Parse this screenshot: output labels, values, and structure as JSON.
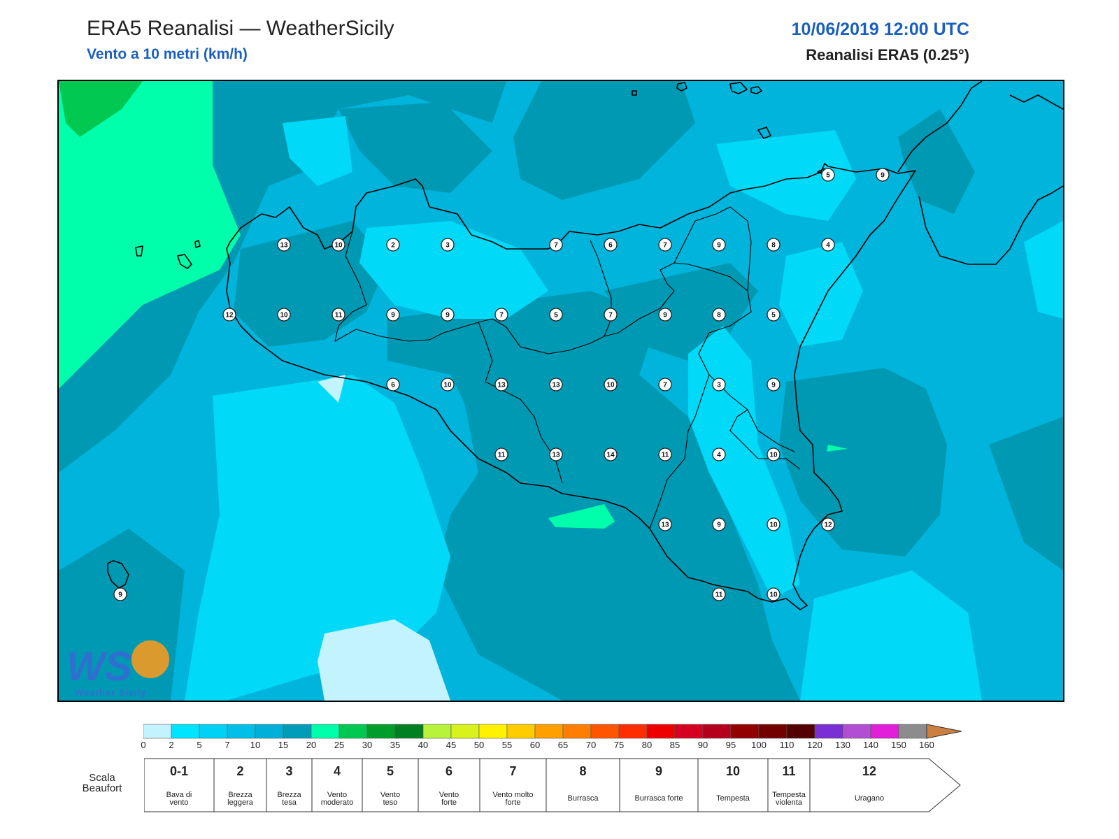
{
  "header": {
    "title": "ERA5 Reanalisi — WeatherSicily",
    "subtitle": "Vento a 10 metri (km/h)",
    "datetime": "10/06/2019 12:00 UTC",
    "source": "Reanalisi ERA5 (0.25°)"
  },
  "colorbar": {
    "ticks": [
      "0",
      "2",
      "5",
      "7",
      "10",
      "15",
      "20",
      "25",
      "30",
      "35",
      "40",
      "45",
      "50",
      "55",
      "60",
      "65",
      "70",
      "75",
      "80",
      "85",
      "90",
      "95",
      "100",
      "110",
      "120",
      "130",
      "140",
      "150",
      "160"
    ],
    "colors": [
      "#c2f3ff",
      "#00e5ff",
      "#00d2f5",
      "#00c0e8",
      "#00b0d8",
      "#009cb8",
      "#00ffaa",
      "#00c850",
      "#009d2b",
      "#008020",
      "#b8f23a",
      "#d7f21c",
      "#fff200",
      "#ffcc00",
      "#ff9f00",
      "#ff7d00",
      "#ff5500",
      "#ff2d00",
      "#ee0000",
      "#d60020",
      "#b4001a",
      "#930000",
      "#720000",
      "#520000",
      "#7a2ed6",
      "#b24ed2",
      "#e21edb",
      "#8c8c8c",
      "#5e5e5e",
      "#000000",
      "#7f3f24",
      "#cd7f40"
    ]
  },
  "beaufort": {
    "title": "Scala Beaufort",
    "levels": [
      {
        "num": "0-1",
        "label": "Bava di vento"
      },
      {
        "num": "2",
        "label": "Brezza leggera"
      },
      {
        "num": "3",
        "label": "Brezza tesa"
      },
      {
        "num": "4",
        "label": "Vento moderato"
      },
      {
        "num": "5",
        "label": "Vento teso"
      },
      {
        "num": "6",
        "label": "Vento forte"
      },
      {
        "num": "7",
        "label": "Vento molto forte"
      },
      {
        "num": "8",
        "label": "Burrasca"
      },
      {
        "num": "9",
        "label": "Burrasca forte"
      },
      {
        "num": "10",
        "label": "Tempesta"
      },
      {
        "num": "11",
        "label": "Tempesta violenta"
      },
      {
        "num": "12",
        "label": "Uragano"
      }
    ]
  },
  "logo": {
    "text": "Weather Sicily",
    "mark": "WS"
  },
  "stations": [
    {
      "id": "r1-1",
      "value": "13"
    },
    {
      "id": "r1-2",
      "value": "10"
    },
    {
      "id": "r1-3",
      "value": "2"
    },
    {
      "id": "r1-4",
      "value": "3"
    },
    {
      "id": "r1-5",
      "value": "7"
    },
    {
      "id": "r1-6",
      "value": "6"
    },
    {
      "id": "r1-7",
      "value": "7"
    },
    {
      "id": "r1-8",
      "value": "9"
    },
    {
      "id": "r1-9",
      "value": "8"
    },
    {
      "id": "r1-10",
      "value": "4"
    },
    {
      "id": "r2-1",
      "value": "12"
    },
    {
      "id": "r2-2",
      "value": "10"
    },
    {
      "id": "r2-3",
      "value": "11"
    },
    {
      "id": "r2-4",
      "value": "9"
    },
    {
      "id": "r2-5",
      "value": "9"
    },
    {
      "id": "r2-6",
      "value": "7"
    },
    {
      "id": "r2-7",
      "value": "5"
    },
    {
      "id": "r2-8",
      "value": "7"
    },
    {
      "id": "r2-9",
      "value": "9"
    },
    {
      "id": "r2-10",
      "value": "8"
    },
    {
      "id": "r2-11",
      "value": "5"
    },
    {
      "id": "r3-1",
      "value": "6"
    },
    {
      "id": "r3-2",
      "value": "10"
    },
    {
      "id": "r3-3",
      "value": "13"
    },
    {
      "id": "r3-4",
      "value": "13"
    },
    {
      "id": "r3-5",
      "value": "10"
    },
    {
      "id": "r3-6",
      "value": "7"
    },
    {
      "id": "r3-7",
      "value": "3"
    },
    {
      "id": "r3-8",
      "value": "9"
    },
    {
      "id": "r4-1",
      "value": "11"
    },
    {
      "id": "r4-2",
      "value": "13"
    },
    {
      "id": "r4-3",
      "value": "14"
    },
    {
      "id": "r4-4",
      "value": "11"
    },
    {
      "id": "r4-5",
      "value": "4"
    },
    {
      "id": "r4-6",
      "value": "10"
    },
    {
      "id": "r5-1",
      "value": "13"
    },
    {
      "id": "r5-2",
      "value": "9"
    },
    {
      "id": "r5-3",
      "value": "10"
    },
    {
      "id": "r5-4",
      "value": "12"
    },
    {
      "id": "r6-1",
      "value": "11"
    },
    {
      "id": "r6-2",
      "value": "10"
    },
    {
      "id": "cal-1",
      "value": "5"
    },
    {
      "id": "cal-2",
      "value": "9"
    },
    {
      "id": "ust-1",
      "value": "9"
    }
  ]
}
